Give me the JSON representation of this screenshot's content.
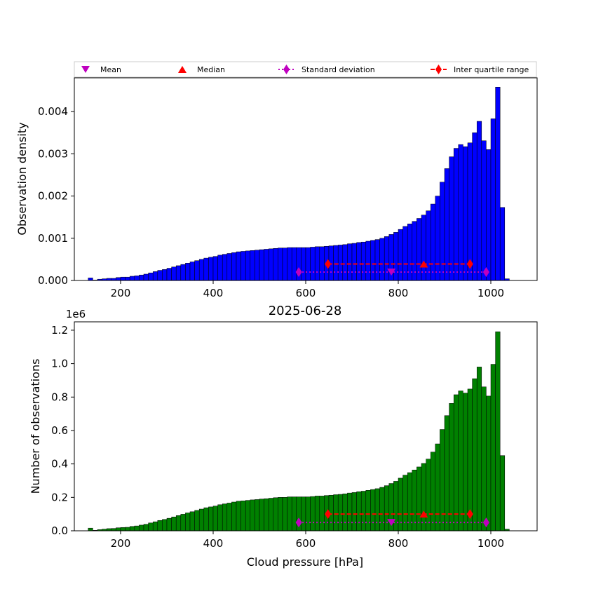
{
  "chart_data": [
    {
      "type": "bar",
      "title": "",
      "xlabel": "",
      "ylabel": "Observation density",
      "xlim": [
        100,
        1100
      ],
      "ylim": [
        0,
        0.0048
      ],
      "xticks": [
        "200",
        "400",
        "600",
        "800",
        "1000"
      ],
      "yticks": [
        "0.000",
        "0.001",
        "0.002",
        "0.003",
        "0.004"
      ],
      "bar_color": "#0000ff",
      "bin_width": 10,
      "bin_left": [
        130,
        140,
        150,
        160,
        170,
        180,
        190,
        200,
        210,
        220,
        230,
        240,
        250,
        260,
        270,
        280,
        290,
        300,
        310,
        320,
        330,
        340,
        350,
        360,
        370,
        380,
        390,
        400,
        410,
        420,
        430,
        440,
        450,
        460,
        470,
        480,
        490,
        500,
        510,
        520,
        530,
        540,
        550,
        560,
        570,
        580,
        590,
        600,
        610,
        620,
        630,
        640,
        650,
        660,
        670,
        680,
        690,
        700,
        710,
        720,
        730,
        740,
        750,
        760,
        770,
        780,
        790,
        800,
        810,
        820,
        830,
        840,
        850,
        860,
        870,
        880,
        890,
        900,
        910,
        920,
        930,
        940,
        950,
        960,
        970,
        980,
        990,
        1000,
        1010,
        1020,
        1030
      ],
      "values": [
        6e-05,
        1e-05,
        3e-05,
        4e-05,
        5e-05,
        5e-05,
        7e-05,
        8e-05,
        8e-05,
        0.0001,
        0.00011,
        0.00013,
        0.00015,
        0.00018,
        0.00021,
        0.00024,
        0.00026,
        0.00029,
        0.00032,
        0.00035,
        0.00038,
        0.00041,
        0.00044,
        0.00047,
        0.0005,
        0.00053,
        0.00055,
        0.00057,
        0.0006,
        0.00062,
        0.00064,
        0.00066,
        0.00068,
        0.00069,
        0.0007,
        0.00071,
        0.00072,
        0.00073,
        0.00074,
        0.00075,
        0.00076,
        0.00077,
        0.00077,
        0.00078,
        0.00078,
        0.00078,
        0.00078,
        0.00078,
        0.00079,
        0.0008,
        0.0008,
        0.00081,
        0.00082,
        0.00083,
        0.00084,
        0.00085,
        0.00087,
        0.00088,
        0.0009,
        0.00091,
        0.00093,
        0.00095,
        0.00097,
        0.001,
        0.00104,
        0.00109,
        0.00114,
        0.00121,
        0.00128,
        0.00134,
        0.0014,
        0.00147,
        0.00155,
        0.00165,
        0.00181,
        0.002,
        0.00233,
        0.00265,
        0.00293,
        0.00313,
        0.00322,
        0.00317,
        0.00326,
        0.0035,
        0.00377,
        0.00331,
        0.0031,
        0.00383,
        0.00458,
        0.00173,
        4e-05
      ],
      "legend": [
        "Mean",
        "Median",
        "Standard deviation",
        "Inter quartile range"
      ],
      "legend_loc": "above plot, expanded",
      "statistics": {
        "mean": 785,
        "median": 855,
        "std_range": [
          585,
          990
        ],
        "iqr": [
          648,
          955
        ]
      },
      "marker_y": {
        "mean": 0.0002,
        "median": 0.00039,
        "std": 0.0002,
        "iqr": 0.00039
      }
    },
    {
      "type": "bar",
      "title": "2025-06-28",
      "xlabel": "Cloud pressure [hPa]",
      "ylabel": "Number of observations",
      "offset_text": "1e6",
      "xlim": [
        100,
        1100
      ],
      "ylim": [
        0,
        1.25
      ],
      "xticks": [
        "200",
        "400",
        "600",
        "800",
        "1000"
      ],
      "yticks": [
        "0.0",
        "0.2",
        "0.4",
        "0.6",
        "0.8",
        "1.0",
        "1.2"
      ],
      "bar_color": "#008000",
      "bin_width": 10,
      "bin_left": [
        130,
        140,
        150,
        160,
        170,
        180,
        190,
        200,
        210,
        220,
        230,
        240,
        250,
        260,
        270,
        280,
        290,
        300,
        310,
        320,
        330,
        340,
        350,
        360,
        370,
        380,
        390,
        400,
        410,
        420,
        430,
        440,
        450,
        460,
        470,
        480,
        490,
        500,
        510,
        520,
        530,
        540,
        550,
        560,
        570,
        580,
        590,
        600,
        610,
        620,
        630,
        640,
        650,
        660,
        670,
        680,
        690,
        700,
        710,
        720,
        730,
        740,
        750,
        760,
        770,
        780,
        790,
        800,
        810,
        820,
        830,
        840,
        850,
        860,
        870,
        880,
        890,
        900,
        910,
        920,
        930,
        940,
        950,
        960,
        970,
        980,
        990,
        1000,
        1010,
        1020,
        1030
      ],
      "values": [
        0.016,
        0.003,
        0.007,
        0.01,
        0.013,
        0.014,
        0.018,
        0.02,
        0.021,
        0.026,
        0.029,
        0.034,
        0.039,
        0.047,
        0.054,
        0.062,
        0.068,
        0.075,
        0.083,
        0.091,
        0.099,
        0.107,
        0.114,
        0.122,
        0.13,
        0.138,
        0.143,
        0.148,
        0.156,
        0.161,
        0.166,
        0.172,
        0.177,
        0.179,
        0.182,
        0.185,
        0.187,
        0.19,
        0.192,
        0.195,
        0.198,
        0.2,
        0.2,
        0.203,
        0.203,
        0.203,
        0.203,
        0.203,
        0.205,
        0.208,
        0.208,
        0.211,
        0.213,
        0.216,
        0.218,
        0.221,
        0.226,
        0.229,
        0.234,
        0.237,
        0.242,
        0.247,
        0.252,
        0.26,
        0.27,
        0.283,
        0.296,
        0.315,
        0.333,
        0.348,
        0.364,
        0.382,
        0.403,
        0.429,
        0.471,
        0.52,
        0.606,
        0.689,
        0.762,
        0.814,
        0.837,
        0.824,
        0.848,
        0.91,
        0.98,
        0.861,
        0.806,
        0.996,
        1.191,
        0.45,
        0.01
      ],
      "statistics": {
        "mean": 785,
        "median": 855,
        "std_range": [
          585,
          990
        ],
        "iqr": [
          648,
          955
        ]
      },
      "marker_y": {
        "mean": 0.05,
        "median": 0.1,
        "std": 0.05,
        "iqr": 0.1
      }
    }
  ],
  "colors": {
    "mean": "#bf00bf",
    "median": "#ff0000",
    "std": "#bf00bf",
    "iqr": "#ff0000"
  }
}
